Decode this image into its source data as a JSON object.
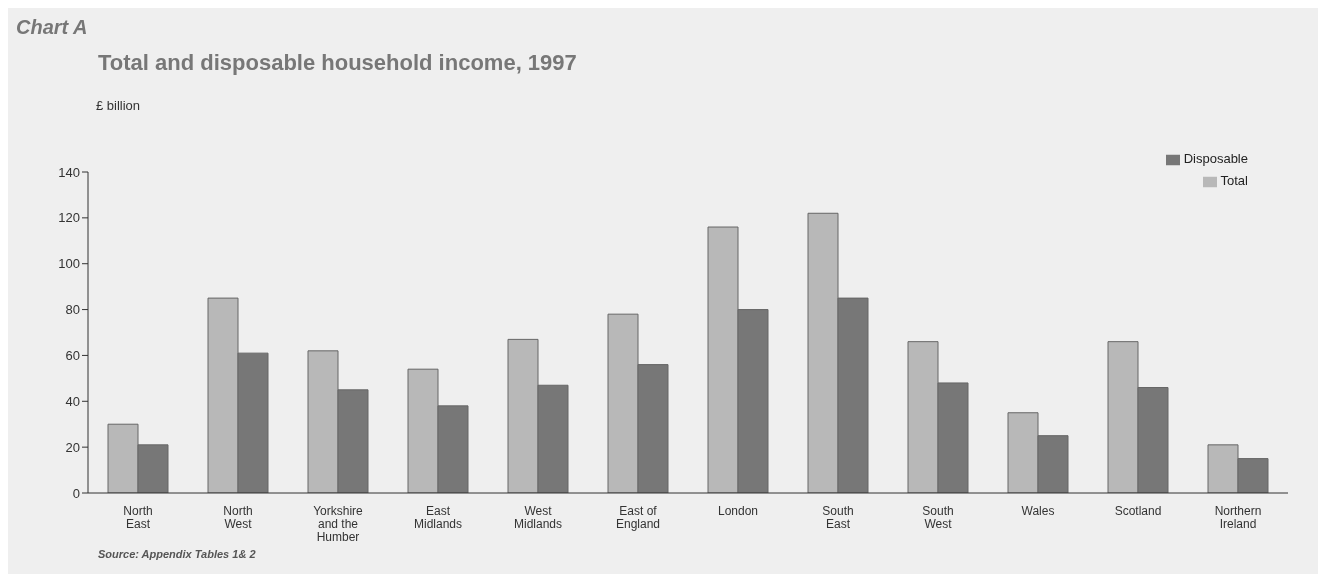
{
  "chart_data": {
    "type": "bar",
    "title": "Total and disposable household income, 1997",
    "ylabel": "£ billion",
    "annotations": [
      "Chart A",
      "Source: Appendix Tables 1& 2"
    ],
    "categories": [
      "North East",
      "North West",
      "Yorkshire and the Humber",
      "East Midlands",
      "West Midlands",
      "East of England",
      "London",
      "South East",
      "South West",
      "Wales",
      "Scotland",
      "Northern Ireland"
    ],
    "series": [
      {
        "name": "Total",
        "color": "#b8b8b8",
        "values": [
          30,
          85,
          62,
          54,
          67,
          78,
          116,
          122,
          66,
          35,
          66,
          21
        ]
      },
      {
        "name": "Disposable",
        "color": "#777777",
        "values": [
          21,
          61,
          45,
          38,
          47,
          56,
          80,
          85,
          48,
          25,
          46,
          15
        ]
      }
    ],
    "ylim": [
      0,
      140
    ],
    "yticks": [
      0,
      20,
      40,
      60,
      80,
      100,
      120,
      140
    ],
    "grid": false,
    "legend": "top right"
  }
}
